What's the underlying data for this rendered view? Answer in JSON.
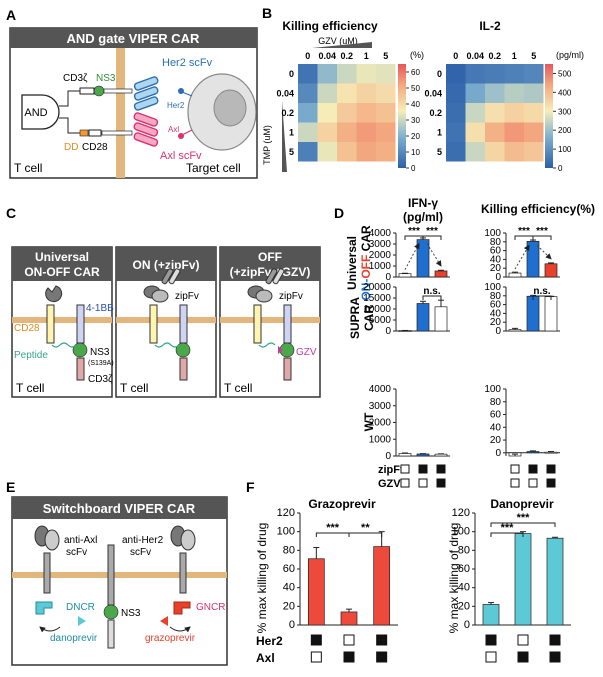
{
  "panels": {
    "A": {
      "letter": "A",
      "title": "AND gate VIPER CAR",
      "and_label": "AND",
      "cd3z": "CD3ζ",
      "ns3": "NS3",
      "dd": "DD",
      "cd28": "CD28",
      "her2_scfv": "Her2 scFv",
      "axl_scfv": "Axl scFv",
      "her2": "Her2",
      "axl": "Axl",
      "t_cell": "T cell",
      "target_cell": "Target cell"
    },
    "B": {
      "letter": "B",
      "unit_pct": "(%)",
      "unit_pgml": "(pg/ml)",
      "gzv_label": "GZV (uM)",
      "tmp_label": "TMP (uM)"
    },
    "C": {
      "letter": "C",
      "box1_title_1": "Universal",
      "box1_title_2": "ON-OFF CAR",
      "box2_title": "ON (+zipFv)",
      "box3_title_1": "OFF",
      "box3_title_2": "(+zipFv +GZV)",
      "cd28": "CD28",
      "bb41": "4-1BB",
      "peptide": "Peptide",
      "ns3": "NS3",
      "s139a": "(S139A)",
      "cd3z": "CD3ζ",
      "zipfv": "zipFv",
      "gzv": "GZV",
      "t_cell": "T cell"
    },
    "D": {
      "letter": "D",
      "col1_title_1": "IFN-γ",
      "col1_title_2": "(pg/ml)",
      "col2_title": "Killing efficiency(%)",
      "row1_a": "Universal",
      "row1_on": "ON-",
      "row1_off": "OFF",
      "row1_car": " CAR",
      "row2_a": "SUPRA",
      "row2_b": "CAR",
      "row3": "WT",
      "sig": "***",
      "ns": "n.s.",
      "zipfv": "zipFv",
      "gzv": "GZV"
    },
    "E": {
      "letter": "E",
      "title": "Switchboard VIPER CAR",
      "anti_axl_1": "anti-Axl",
      "anti_axl_2": "scFv",
      "anti_her2_1": "anti-Her2",
      "anti_her2_2": "scFv",
      "dncr": "DNCR",
      "gncr": "GNCR",
      "ns3": "NS3",
      "danoprevir": "danoprevir",
      "grazoprevir": "grazoprevir"
    },
    "F": {
      "letter": "F",
      "her2": "Her2",
      "axl": "Axl",
      "sig3": "***",
      "sig2": "**"
    }
  },
  "chart_data": [
    {
      "id": "B-killing",
      "type": "heatmap",
      "title": "Killing efficiency",
      "xlabel": "GZV (uM)",
      "ylabel": "TMP (uM)",
      "x": [
        "0",
        "0.04",
        "0.2",
        "1",
        "5"
      ],
      "y": [
        "0",
        "0.04",
        "0.2",
        "1",
        "5"
      ],
      "values": [
        [
          5,
          22,
          30,
          34,
          33
        ],
        [
          10,
          30,
          38,
          42,
          40
        ],
        [
          18,
          36,
          44,
          48,
          46
        ],
        [
          30,
          42,
          50,
          54,
          52
        ],
        [
          8,
          34,
          46,
          52,
          50
        ]
      ],
      "colorbar": {
        "ticks": [
          0,
          10,
          20,
          30,
          40,
          50,
          60
        ],
        "range": [
          0,
          65
        ],
        "unit": "(%)"
      }
    },
    {
      "id": "B-il2",
      "type": "heatmap",
      "title": "IL-2",
      "x": [
        "0",
        "0.04",
        "0.2",
        "1",
        "5"
      ],
      "y": [
        "0",
        "0.04",
        "0.2",
        "1",
        "5"
      ],
      "values": [
        [
          10,
          50,
          60,
          70,
          80
        ],
        [
          20,
          150,
          200,
          230,
          220
        ],
        [
          30,
          250,
          330,
          360,
          340
        ],
        [
          40,
          330,
          420,
          460,
          440
        ],
        [
          30,
          250,
          350,
          400,
          380
        ]
      ],
      "colorbar": {
        "ticks": [
          0,
          100,
          200,
          300,
          400,
          500
        ],
        "range": [
          0,
          550
        ],
        "unit": "(pg/ml)"
      }
    },
    {
      "id": "D-univ-ifng",
      "type": "bar",
      "categories": [
        "none",
        "zipFv",
        "zipFv+GZV"
      ],
      "values": [
        300,
        3400,
        550
      ],
      "errors": [
        40,
        150,
        60
      ],
      "ylim": [
        0,
        4000
      ],
      "yticks": [
        0,
        1000,
        2000,
        3000,
        4000
      ]
    },
    {
      "id": "D-univ-kill",
      "type": "bar",
      "categories": [
        "none",
        "zipFv",
        "zipFv+GZV"
      ],
      "values": [
        9,
        81,
        30
      ],
      "errors": [
        2,
        3,
        2
      ],
      "ylim": [
        0,
        100
      ],
      "yticks": [
        0,
        20,
        40,
        60,
        80,
        100
      ]
    },
    {
      "id": "D-supra-ifng",
      "type": "bar",
      "categories": [
        "none",
        "zipFv",
        "zipFv+GZV"
      ],
      "values": [
        200,
        12500,
        11000
      ],
      "errors": [
        50,
        1000,
        3000
      ],
      "ylim": [
        0,
        20000
      ],
      "yticks": [
        0,
        5000,
        10000,
        15000,
        20000
      ]
    },
    {
      "id": "D-supra-kill",
      "type": "bar",
      "categories": [
        "none",
        "zipFv",
        "zipFv+GZV"
      ],
      "values": [
        3,
        79,
        78
      ],
      "errors": [
        3,
        2,
        1
      ],
      "ylim": [
        0,
        100
      ],
      "yticks": [
        0,
        20,
        40,
        60,
        80,
        100
      ]
    },
    {
      "id": "D-wt-ifng",
      "type": "bar",
      "categories": [
        "none",
        "zipFv",
        "zipFv+GZV"
      ],
      "values": [
        150,
        120,
        110
      ],
      "errors": [
        30,
        20,
        20
      ],
      "ylim": [
        0,
        4000
      ],
      "yticks": [
        0,
        1000,
        2000,
        3000,
        4000
      ]
    },
    {
      "id": "D-wt-kill",
      "type": "bar",
      "categories": [
        "none",
        "zipFv",
        "zipFv+GZV"
      ],
      "values": [
        -5,
        2,
        1
      ],
      "errors": [
        3,
        1,
        1
      ],
      "ylim": [
        -5,
        100
      ],
      "yticks": [
        0,
        20,
        40,
        60,
        80,
        100
      ]
    },
    {
      "id": "F-grazoprevir",
      "type": "bar",
      "title": "Grazoprevir",
      "ylabel": "% max killing of drug",
      "values": [
        71,
        14,
        84
      ],
      "errors": [
        12,
        3,
        16
      ],
      "ylim": [
        0,
        120
      ],
      "yticks": [
        0,
        20,
        40,
        60,
        80,
        100,
        120
      ]
    },
    {
      "id": "F-danoprevir",
      "type": "bar",
      "title": "Danoprevir",
      "ylabel": "% max killing of drug",
      "values": [
        22,
        98,
        93
      ],
      "errors": [
        2,
        2,
        1
      ],
      "ylim": [
        0,
        120
      ],
      "yticks": [
        0,
        20,
        40,
        60,
        80,
        100,
        120
      ]
    }
  ]
}
